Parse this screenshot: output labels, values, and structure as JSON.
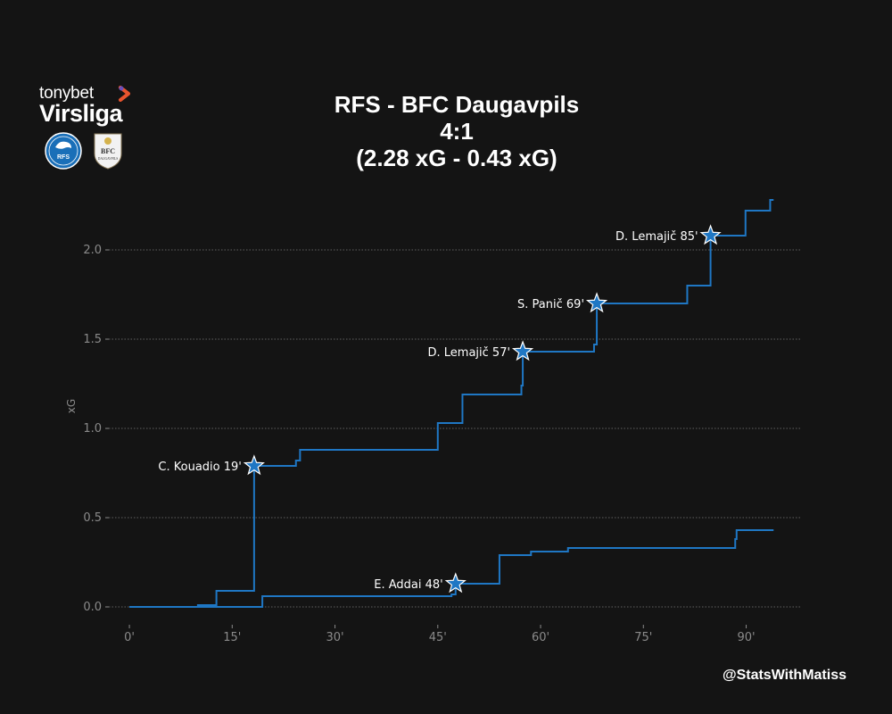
{
  "header": {
    "title_line1": "RFS - BFC Daugavpils",
    "title_line2": "4:1",
    "title_line3": "(2.28 xG - 0.43 xG)"
  },
  "logo": {
    "sponsor": "tonybet",
    "league": "Virsliga",
    "home_crest_text": "RFS",
    "away_crest_text_top": "BFC",
    "away_crest_text_bottom": "DAUGAVPILS"
  },
  "footer": {
    "credit": "@StatsWithMatiss"
  },
  "colors": {
    "background": "#141414",
    "line": "#1f77c4",
    "text": "#ffffff",
    "axis_text": "#8a8a8a",
    "grid": "#7a7a7a",
    "logo_accent": "#e8542e"
  },
  "chart_data": {
    "type": "line",
    "xlabel": "",
    "ylabel": "xG",
    "xlim": [
      -3,
      98
    ],
    "ylim": [
      -0.1,
      2.35
    ],
    "x_ticks": [
      0,
      15,
      30,
      45,
      60,
      75,
      90
    ],
    "x_tick_labels": [
      "0'",
      "15'",
      "30'",
      "45'",
      "60'",
      "75'",
      "90'"
    ],
    "y_ticks": [
      0.0,
      0.5,
      1.0,
      1.5,
      2.0
    ],
    "y_tick_labels": [
      "0.0",
      "0.5",
      "1.0",
      "1.5",
      "2.0"
    ],
    "grid": "horizontal dotted",
    "step": "post",
    "series": [
      {
        "x": [
          0,
          10,
          12.7,
          18.2,
          18.2,
          24.3,
          24.9,
          45,
          48.6,
          57.2,
          57.4,
          67.8,
          68.2,
          81.4,
          84.8,
          89.9,
          93.5,
          94
        ],
        "y": [
          0.0,
          0.01,
          0.09,
          0.79,
          0.79,
          0.82,
          0.88,
          1.03,
          1.19,
          1.24,
          1.43,
          1.47,
          1.7,
          1.8,
          2.08,
          2.22,
          2.28,
          2.28
        ]
      },
      {
        "x": [
          0,
          19.4,
          47,
          47.6,
          54,
          58.6,
          64,
          88.4,
          88.6,
          94
        ],
        "y": [
          0.0,
          0.06,
          0.07,
          0.13,
          0.29,
          0.31,
          0.33,
          0.38,
          0.43,
          0.43
        ]
      }
    ],
    "goals": [
      {
        "label": "C. Kouadio 19'",
        "x": 18.2,
        "y": 0.79
      },
      {
        "label": "D. Lemajič 57'",
        "x": 57.4,
        "y": 1.43
      },
      {
        "label": "S. Panič 69'",
        "x": 68.2,
        "y": 1.7
      },
      {
        "label": "D. Lemajič 85'",
        "x": 84.8,
        "y": 2.08
      },
      {
        "label": "E. Addai 48'",
        "x": 47.6,
        "y": 0.13
      }
    ]
  }
}
